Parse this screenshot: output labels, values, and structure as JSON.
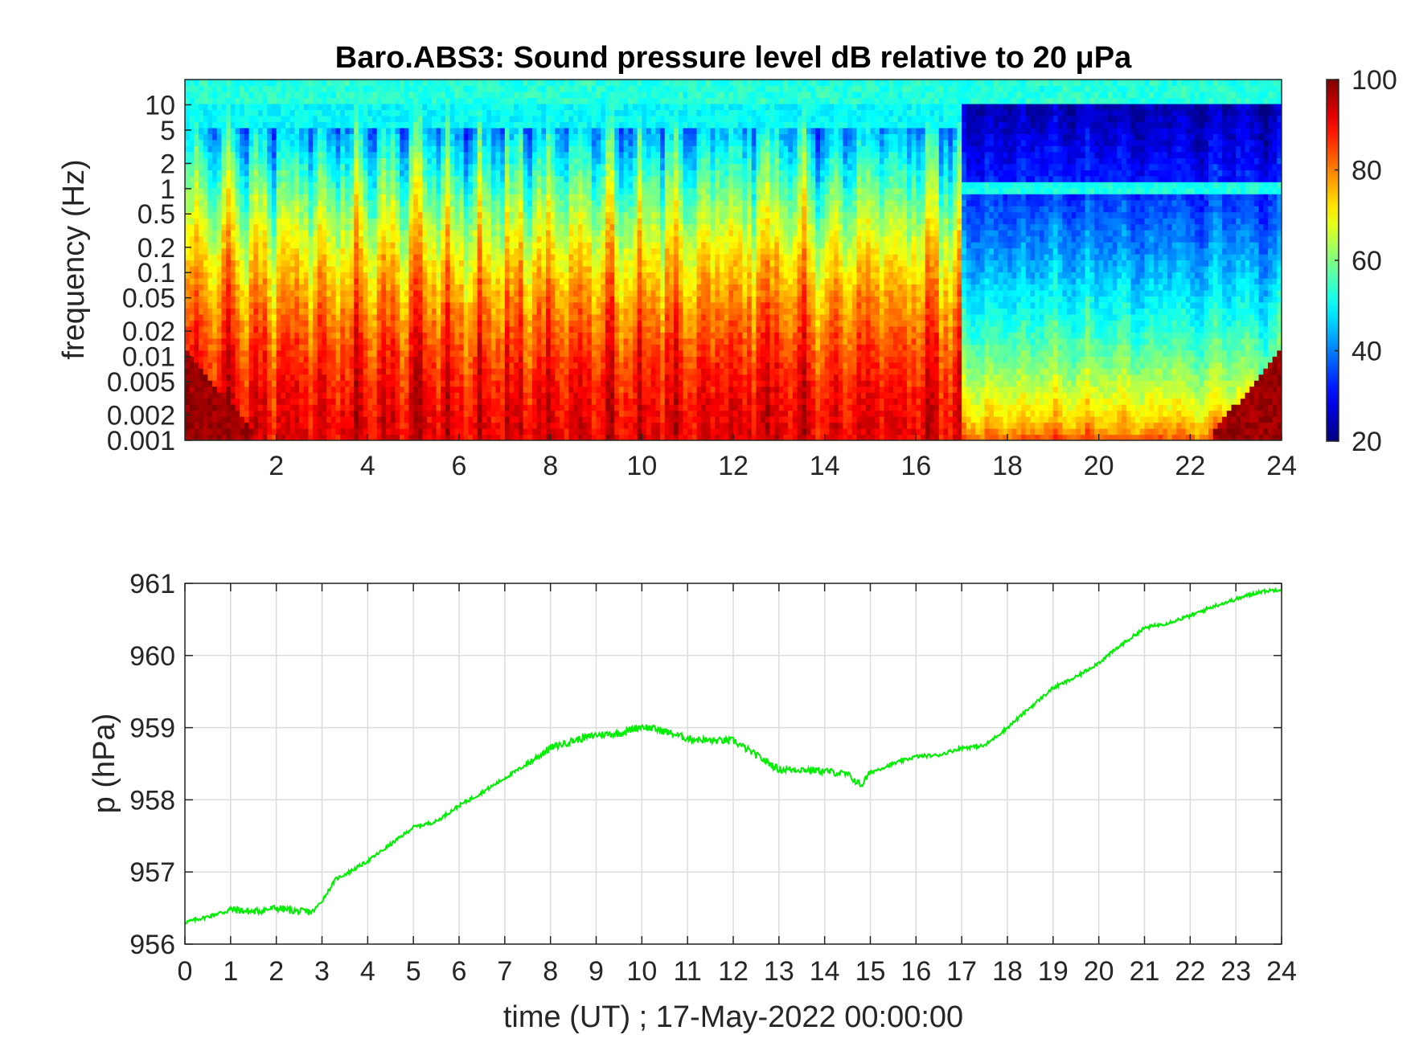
{
  "chart_data": [
    {
      "type": "heatmap",
      "title": "Baro.ABS3: Sound pressure level dB relative to 20 μPa",
      "ylabel": "frequency (Hz)",
      "xlabel": "",
      "xlim": [
        0,
        24
      ],
      "ylim": [
        0.001,
        20
      ],
      "yscale": "log",
      "colormap": "jet",
      "x_ticks": [
        "2",
        "4",
        "6",
        "8",
        "10",
        "12",
        "14",
        "16",
        "18",
        "20",
        "22",
        "24"
      ],
      "y_ticks": [
        "0.001",
        "0.002",
        "0.005",
        "0.01",
        "0.02",
        "0.05",
        "0.1",
        "0.2",
        "0.5",
        "1",
        "2",
        "5",
        "10"
      ],
      "colorbar": {
        "min": 20,
        "max": 100,
        "ticks": [
          "20",
          "40",
          "60",
          "80",
          "100"
        ]
      },
      "grid": false
    },
    {
      "type": "line",
      "title": "",
      "xlabel": "time (UT) ; 17-May-2022 00:00:00",
      "ylabel": "p (hPa)",
      "xlim": [
        0,
        24
      ],
      "ylim": [
        956,
        961
      ],
      "grid": true,
      "line_color": "#00ee00",
      "x_ticks": [
        "0",
        "1",
        "2",
        "3",
        "4",
        "5",
        "6",
        "7",
        "8",
        "9",
        "10",
        "11",
        "12",
        "13",
        "14",
        "15",
        "16",
        "17",
        "18",
        "19",
        "20",
        "21",
        "22",
        "23",
        "24"
      ],
      "y_ticks": [
        "956",
        "957",
        "958",
        "959",
        "960",
        "961"
      ],
      "series": [
        {
          "x": [
            0,
            0.5,
            1,
            1.5,
            2,
            2.5,
            2.8,
            3,
            3.3,
            3.6,
            4,
            4.5,
            5,
            5.5,
            6,
            6.5,
            7,
            7.5,
            8,
            8.5,
            9,
            9.5,
            10,
            10.5,
            11,
            11.5,
            12,
            12.5,
            13,
            13.5,
            14,
            14.5,
            14.8,
            15,
            15.5,
            16,
            16.5,
            17,
            17.5,
            18,
            18.5,
            19,
            19.5,
            20,
            20.5,
            21,
            21.5,
            22,
            22.5,
            23,
            23.5,
            24
          ],
          "y": [
            956.3,
            956.38,
            956.48,
            956.45,
            956.5,
            956.45,
            956.45,
            956.6,
            956.9,
            957.0,
            957.15,
            957.38,
            957.62,
            957.7,
            957.92,
            958.1,
            958.3,
            958.5,
            958.72,
            958.82,
            958.9,
            958.92,
            959.02,
            958.95,
            958.85,
            958.82,
            958.82,
            958.62,
            958.42,
            958.42,
            958.4,
            958.35,
            958.2,
            958.38,
            958.5,
            958.6,
            958.62,
            958.72,
            958.75,
            959.0,
            959.28,
            959.55,
            959.7,
            959.9,
            960.15,
            960.38,
            960.45,
            960.55,
            960.68,
            960.78,
            960.88,
            960.92
          ]
        }
      ]
    }
  ]
}
